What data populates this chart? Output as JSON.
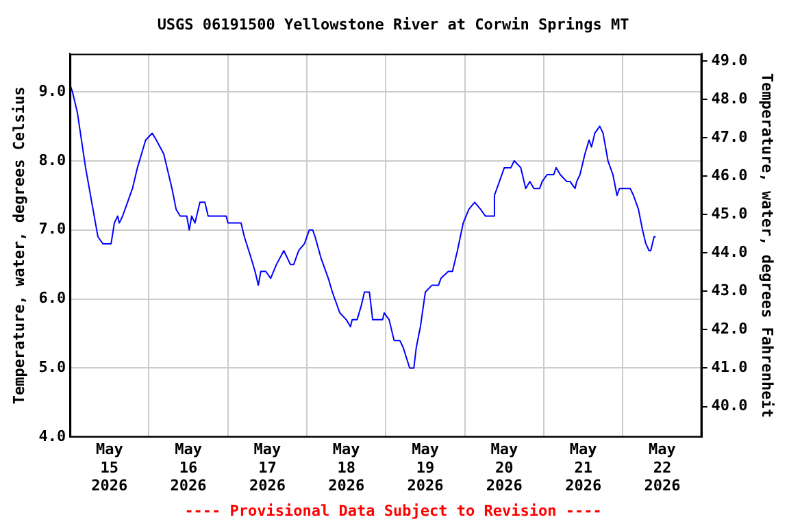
{
  "chart_data": {
    "type": "line",
    "title": "USGS 06191500 Yellowstone River at Corwin Springs MT",
    "ylabel": "Temperature, water, degrees Celsius",
    "y2label": "Temperature, water, degrees Fahrenheit",
    "annotations": [
      "---- Provisional Data Subject to Revision ----"
    ],
    "x": [
      "2026-05-15T00:00",
      "2026-05-15T00:45",
      "2026-05-15T02:15",
      "2026-05-15T03:30",
      "2026-05-15T04:45",
      "2026-05-15T06:15",
      "2026-05-15T07:45",
      "2026-05-15T08:30",
      "2026-05-15T10:00",
      "2026-05-15T12:30",
      "2026-05-15T13:30",
      "2026-05-15T14:30",
      "2026-05-15T15:00",
      "2026-05-15T16:00",
      "2026-05-15T17:30",
      "2026-05-15T19:00",
      "2026-05-15T20:30",
      "2026-05-15T21:45",
      "2026-05-15T23:00",
      "2026-05-16T01:00",
      "2026-05-16T02:15",
      "2026-05-16T04:30",
      "2026-05-16T05:30",
      "2026-05-16T07:00",
      "2026-05-16T08:15",
      "2026-05-16T09:30",
      "2026-05-16T11:30",
      "2026-05-16T12:15",
      "2026-05-16T13:00",
      "2026-05-16T14:00",
      "2026-05-16T15:30",
      "2026-05-16T17:00",
      "2026-05-16T18:00",
      "2026-05-16T23:30",
      "2026-05-17T00:00",
      "2026-05-17T04:00",
      "2026-05-17T05:00",
      "2026-05-17T07:00",
      "2026-05-17T08:15",
      "2026-05-17T09:15",
      "2026-05-17T10:00",
      "2026-05-17T11:30",
      "2026-05-17T13:00",
      "2026-05-17T14:45",
      "2026-05-17T17:00",
      "2026-05-17T19:00",
      "2026-05-17T20:00",
      "2026-05-17T21:30",
      "2026-05-17T23:15",
      "2026-05-18T00:45",
      "2026-05-18T01:45",
      "2026-05-18T02:30",
      "2026-05-18T04:15",
      "2026-05-18T06:30",
      "2026-05-18T07:45",
      "2026-05-18T10:00",
      "2026-05-18T12:00",
      "2026-05-18T13:15",
      "2026-05-18T13:45",
      "2026-05-18T15:15",
      "2026-05-18T16:30",
      "2026-05-18T17:30",
      "2026-05-18T19:00",
      "2026-05-18T20:00",
      "2026-05-18T23:00",
      "2026-05-18T23:30",
      "2026-05-19T01:00",
      "2026-05-19T02:30",
      "2026-05-19T04:15",
      "2026-05-19T05:15",
      "2026-05-19T07:15",
      "2026-05-19T08:30",
      "2026-05-19T09:15",
      "2026-05-19T10:30",
      "2026-05-19T12:00",
      "2026-05-19T14:00",
      "2026-05-19T16:00",
      "2026-05-19T16:45",
      "2026-05-19T19:00",
      "2026-05-19T20:15",
      "2026-05-19T21:45",
      "2026-05-19T23:30",
      "2026-05-20T01:15",
      "2026-05-20T03:00",
      "2026-05-20T04:45",
      "2026-05-20T06:15",
      "2026-05-20T08:45",
      "2026-05-20T09:00",
      "2026-05-20T10:30",
      "2026-05-20T12:00",
      "2026-05-20T14:00",
      "2026-05-20T15:00",
      "2026-05-20T17:00",
      "2026-05-20T18:30",
      "2026-05-20T19:45",
      "2026-05-20T21:00",
      "2026-05-20T22:45",
      "2026-05-20T23:30",
      "2026-05-21T01:00",
      "2026-05-21T03:00",
      "2026-05-21T03:45",
      "2026-05-21T05:00",
      "2026-05-21T07:00",
      "2026-05-21T08:00",
      "2026-05-21T09:30",
      "2026-05-21T10:00",
      "2026-05-21T11:00",
      "2026-05-21T12:30",
      "2026-05-21T13:45",
      "2026-05-21T14:30",
      "2026-05-21T15:30",
      "2026-05-21T17:00",
      "2026-05-21T18:00",
      "2026-05-21T19:30",
      "2026-05-21T21:00",
      "2026-05-21T22:15",
      "2026-05-21T23:00",
      "2026-05-22T02:15",
      "2026-05-22T03:15",
      "2026-05-22T04:45",
      "2026-05-22T06:00",
      "2026-05-22T07:00",
      "2026-05-22T08:00",
      "2026-05-22T08:30",
      "2026-05-22T09:30",
      "2026-05-22T10:00"
    ],
    "series": [
      {
        "color": "#0000ff",
        "values": [
          9.1,
          9.0,
          8.7,
          8.3,
          7.9,
          7.5,
          7.1,
          6.9,
          6.8,
          6.8,
          7.1,
          7.2,
          7.1,
          7.2,
          7.4,
          7.6,
          7.9,
          8.1,
          8.3,
          8.4,
          8.3,
          8.1,
          7.9,
          7.6,
          7.3,
          7.2,
          7.2,
          7.0,
          7.2,
          7.1,
          7.4,
          7.4,
          7.2,
          7.2,
          7.1,
          7.1,
          6.9,
          6.6,
          6.4,
          6.2,
          6.4,
          6.4,
          6.3,
          6.5,
          6.7,
          6.5,
          6.5,
          6.7,
          6.8,
          7.0,
          7.0,
          6.9,
          6.6,
          6.3,
          6.1,
          5.8,
          5.7,
          5.6,
          5.7,
          5.7,
          5.9,
          6.1,
          6.1,
          5.7,
          5.7,
          5.8,
          5.7,
          5.4,
          5.4,
          5.3,
          5.0,
          5.0,
          5.3,
          5.6,
          6.1,
          6.2,
          6.2,
          6.3,
          6.4,
          6.4,
          6.7,
          7.1,
          7.3,
          7.4,
          7.3,
          7.2,
          7.2,
          7.5,
          7.7,
          7.9,
          7.9,
          8.0,
          7.9,
          7.6,
          7.7,
          7.6,
          7.6,
          7.7,
          7.8,
          7.8,
          7.9,
          7.8,
          7.7,
          7.7,
          7.6,
          7.7,
          7.8,
          8.1,
          8.3,
          8.2,
          8.4,
          8.5,
          8.4,
          8.0,
          7.8,
          7.5,
          7.6,
          7.6,
          7.5,
          7.3,
          7.0,
          6.8,
          6.7,
          6.7,
          6.9,
          6.9
        ]
      }
    ],
    "xlim": [
      "2026-05-15T00:00",
      "2026-05-23T00:00"
    ],
    "xticks": [
      {
        "value": "2026-05-15T12:00",
        "label": "May 15 2026"
      },
      {
        "value": "2026-05-16T00:00",
        "label": null
      },
      {
        "value": "2026-05-16T12:00",
        "label": "May 16 2026"
      },
      {
        "value": "2026-05-17T00:00",
        "label": null
      },
      {
        "value": "2026-05-17T12:00",
        "label": "May 17 2026"
      },
      {
        "value": "2026-05-18T00:00",
        "label": null
      },
      {
        "value": "2026-05-18T12:00",
        "label": "May 18 2026"
      },
      {
        "value": "2026-05-19T00:00",
        "label": null
      },
      {
        "value": "2026-05-19T12:00",
        "label": "May 19 2026"
      },
      {
        "value": "2026-05-20T00:00",
        "label": null
      },
      {
        "value": "2026-05-20T12:00",
        "label": "May 20 2026"
      },
      {
        "value": "2026-05-21T00:00",
        "label": null
      },
      {
        "value": "2026-05-21T12:00",
        "label": "May 21 2026"
      },
      {
        "value": "2026-05-22T00:00",
        "label": null
      },
      {
        "value": "2026-05-22T12:00",
        "label": "May 22 2026"
      }
    ],
    "ylim": [
      4.0,
      9.55
    ],
    "yticks": [
      {
        "value": 4,
        "label": "4.0"
      },
      {
        "value": 5,
        "label": "5.0"
      },
      {
        "value": 6,
        "label": "6.0"
      },
      {
        "value": 7,
        "label": "7.0"
      },
      {
        "value": 8,
        "label": "8.0"
      },
      {
        "value": 9,
        "label": "9.0"
      }
    ],
    "y2lim": [
      39.2,
      49.19
    ],
    "y2ticks": [
      {
        "value": 40,
        "label": "40.0"
      },
      {
        "value": 41,
        "label": "41.0"
      },
      {
        "value": 42,
        "label": "42.0"
      },
      {
        "value": 43,
        "label": "43.0"
      },
      {
        "value": 44,
        "label": "44.0"
      },
      {
        "value": 45,
        "label": "45.0"
      },
      {
        "value": 46,
        "label": "46.0"
      },
      {
        "value": 47,
        "label": "47.0"
      },
      {
        "value": 48,
        "label": "48.0"
      },
      {
        "value": 49,
        "label": "49.0"
      }
    ],
    "grid": true,
    "legend": false,
    "marker": "none",
    "line_style": "solid"
  }
}
